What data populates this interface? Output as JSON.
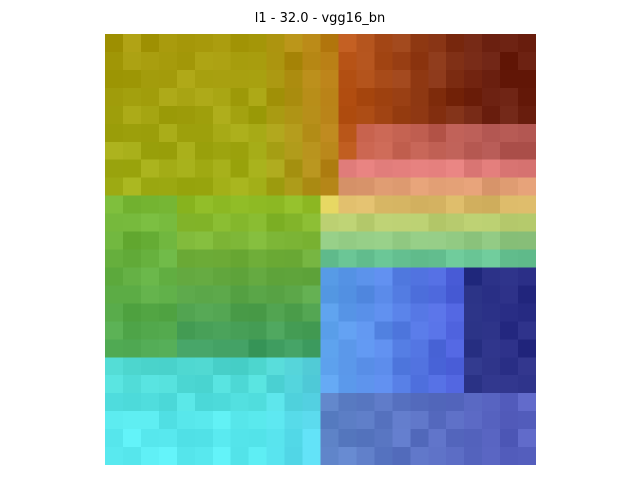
{
  "figure": {
    "title": "l1 - 32.0 - vgg16_bn"
  },
  "image": {
    "description_colors": {
      "top_left": "#a89a0c",
      "top_right": "#6a1f0f",
      "pink_band": "#e0787a",
      "yellow_band": "#d8d060",
      "green_left": "#5cb040",
      "teal": "#40c0a8",
      "cyan": "#5aeaf0",
      "blue": "#4a4ad8",
      "navy": "#1a2060",
      "slate": "#6070b0"
    }
  }
}
